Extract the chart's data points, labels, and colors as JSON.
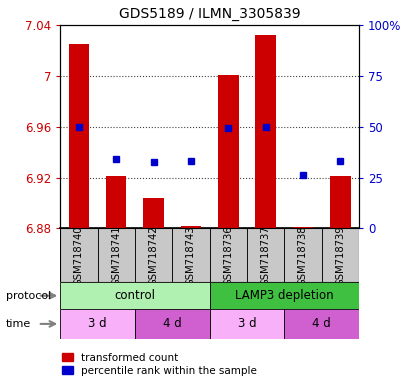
{
  "title": "GDS5189 / ILMN_3305839",
  "samples": [
    "GSM718740",
    "GSM718741",
    "GSM718742",
    "GSM718743",
    "GSM718736",
    "GSM718737",
    "GSM718738",
    "GSM718739"
  ],
  "red_values": [
    7.025,
    6.921,
    6.904,
    6.882,
    7.001,
    7.032,
    6.881,
    6.921
  ],
  "blue_values": [
    6.96,
    6.935,
    6.932,
    6.933,
    6.959,
    6.96,
    6.922,
    6.933
  ],
  "ylim_left": [
    6.88,
    7.04
  ],
  "ylim_right": [
    0,
    100
  ],
  "yticks_left": [
    6.88,
    6.92,
    6.96,
    7.0,
    7.04
  ],
  "ytick_labels_left": [
    "6.88",
    "6.92",
    "6.96",
    "7",
    "7.04"
  ],
  "yticks_right": [
    0,
    25,
    50,
    75,
    100
  ],
  "ytick_labels_right": [
    "0",
    "25",
    "50",
    "75",
    "100%"
  ],
  "protocol_labels": [
    "control",
    "LAMP3 depletion"
  ],
  "protocol_colors": [
    "#b0f0b0",
    "#40c040"
  ],
  "protocol_ranges": [
    [
      0,
      4
    ],
    [
      4,
      8
    ]
  ],
  "time_labels": [
    "3 d",
    "4 d",
    "3 d",
    "4 d"
  ],
  "time_colors_light": "#f8b0f8",
  "time_colors_dark": "#d060d0",
  "time_ranges": [
    [
      0,
      2
    ],
    [
      2,
      4
    ],
    [
      4,
      6
    ],
    [
      6,
      8
    ]
  ],
  "time_pattern": [
    0,
    1,
    0,
    1
  ],
  "legend_red": "transformed count",
  "legend_blue": "percentile rank within the sample",
  "bar_bottom": 6.88,
  "bar_width": 0.55,
  "red_color": "#cc0000",
  "blue_color": "#0000cc",
  "label_bg": "#c8c8c8",
  "grid_linestyle": ":",
  "grid_color": "#404040",
  "grid_linewidth": 0.8
}
